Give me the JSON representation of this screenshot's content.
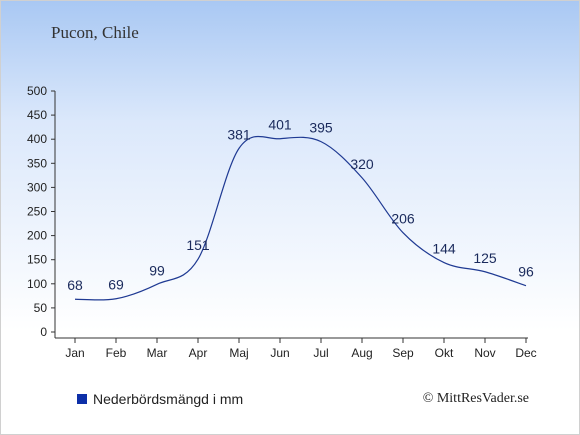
{
  "header": {
    "location": "Pucon, Chile"
  },
  "legend": {
    "label": "Nederbördsmängd i mm",
    "color": "#0d2fa8"
  },
  "footer": {
    "copyright": "© MittResVader.se"
  },
  "chart_data": {
    "type": "line",
    "title": "",
    "xlabel": "",
    "ylabel": "",
    "categories": [
      "Jan",
      "Feb",
      "Mar",
      "Apr",
      "Maj",
      "Jun",
      "Jul",
      "Aug",
      "Sep",
      "Okt",
      "Nov",
      "Dec"
    ],
    "series": [
      {
        "name": "Nederbördsmängd i mm",
        "values": [
          68,
          69,
          99,
          151,
          381,
          401,
          395,
          320,
          206,
          144,
          125,
          96
        ],
        "color": "#1f3a93"
      }
    ],
    "ylim": [
      0,
      500
    ],
    "yticks": [
      0,
      50,
      100,
      150,
      200,
      250,
      300,
      350,
      400,
      450,
      500
    ],
    "grid": false,
    "legend_position": "bottom-left",
    "data_labels": true
  }
}
